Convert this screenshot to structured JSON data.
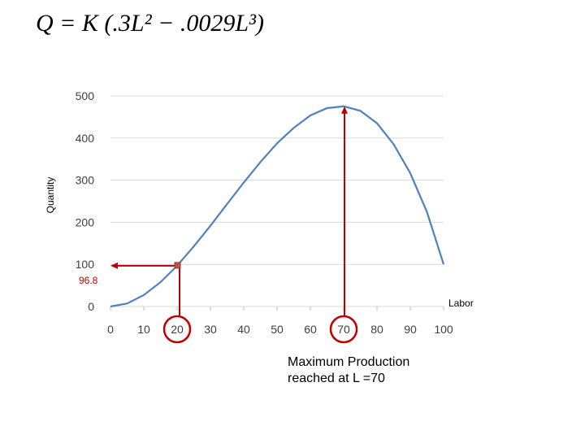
{
  "equation": "Q = K (.3L² − .0029L³)",
  "chart_data": {
    "type": "line",
    "title": "",
    "xlabel": "Labor",
    "ylabel": "Quantity",
    "xlim": [
      0,
      100
    ],
    "ylim": [
      0,
      500
    ],
    "x_ticks": [
      "0",
      "10",
      "20",
      "30",
      "40",
      "50",
      "60",
      "70",
      "80",
      "90",
      "100"
    ],
    "y_ticks": [
      "0",
      "100",
      "200",
      "300",
      "400",
      "500"
    ],
    "grid": true,
    "legend": "none",
    "series": [
      {
        "x": [
          0,
          5,
          10,
          15,
          20,
          25,
          30,
          35,
          40,
          45,
          50,
          55,
          60,
          65,
          70,
          75,
          80,
          85,
          90,
          95,
          100
        ],
        "y": [
          0,
          7.1,
          27.1,
          57.7,
          96.8,
          142.7,
          191.7,
          243.2,
          294.4,
          343.0,
          387.5,
          424.2,
          453.6,
          471.1,
          475.3,
          464.7,
          435.2,
          385.2,
          316.4,
          224.3,
          100.0
        ],
        "color": "#4f81bd"
      }
    ],
    "annotations": {
      "point_label": "96.8",
      "point": {
        "x": 20,
        "y": 96.8
      },
      "max_point": {
        "x": 70,
        "y": 475.3
      },
      "circled_ticks": [
        "20",
        "70"
      ],
      "annotation_color": "#c00000"
    }
  },
  "note": {
    "line1": "Maximum Production",
    "line2": "reached at L =70"
  }
}
